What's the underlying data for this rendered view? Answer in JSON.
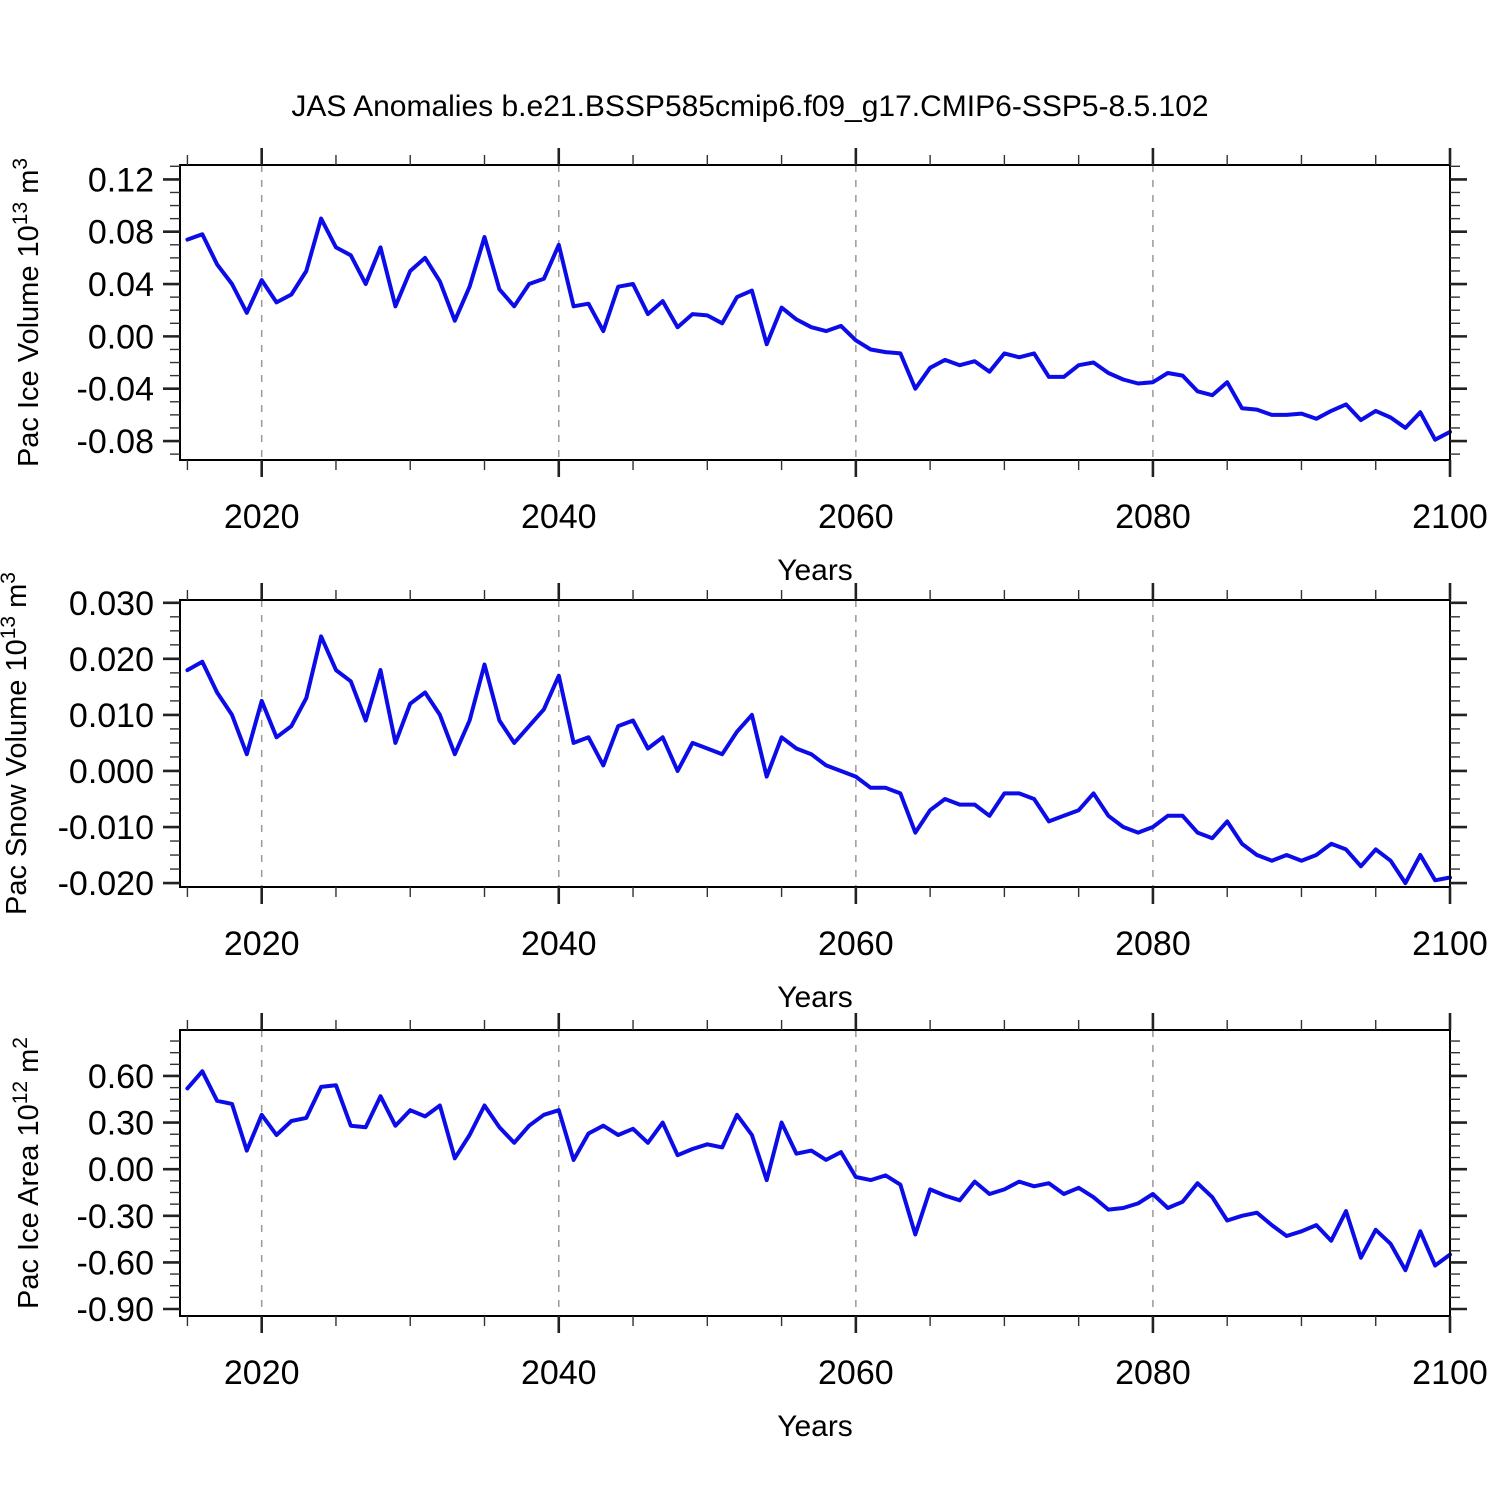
{
  "figure": {
    "title": "JAS Anomalies b.e21.BSSP585cmip6.f09_g17.CMIP6-SSP5-8.5.102",
    "background_color": "#ffffff",
    "line_color": "#0c0ce8",
    "grid_color": "#999999",
    "axis_color": "#000000"
  },
  "x_years": [
    2015,
    2016,
    2017,
    2018,
    2019,
    2020,
    2021,
    2022,
    2023,
    2024,
    2025,
    2026,
    2027,
    2028,
    2029,
    2030,
    2031,
    2032,
    2033,
    2034,
    2035,
    2036,
    2037,
    2038,
    2039,
    2040,
    2041,
    2042,
    2043,
    2044,
    2045,
    2046,
    2047,
    2048,
    2049,
    2050,
    2051,
    2052,
    2053,
    2054,
    2055,
    2056,
    2057,
    2058,
    2059,
    2060,
    2061,
    2062,
    2063,
    2064,
    2065,
    2066,
    2067,
    2068,
    2069,
    2070,
    2071,
    2072,
    2073,
    2074,
    2075,
    2076,
    2077,
    2078,
    2079,
    2080,
    2081,
    2082,
    2083,
    2084,
    2085,
    2086,
    2087,
    2088,
    2089,
    2090,
    2091,
    2092,
    2093,
    2094,
    2095,
    2096,
    2097,
    2098,
    2099,
    2100
  ],
  "chart_data": [
    {
      "type": "line",
      "ylabel": {
        "base": "Pac Ice Volume 10",
        "exponent": "13",
        "unit": " m",
        "unit_exponent": "3",
        "text": "Pac Ice Volume 10^13 m^3"
      },
      "xlabel": "Years",
      "xlim": [
        2014.5,
        2100
      ],
      "ylim": [
        -0.0945,
        0.131
      ],
      "x_ticks_major": [
        2020,
        2040,
        2060,
        2080,
        2100
      ],
      "x_minor_step": 5,
      "y_ticks_major": [
        0.12,
        0.08,
        0.04,
        0.0,
        -0.04,
        -0.08
      ],
      "y_minor_step": 0.01,
      "y_decimals": 2,
      "gridlines_x": [
        2020,
        2040,
        2060,
        2080
      ],
      "grid_on": true,
      "legend": "none",
      "values": [
        0.074,
        0.078,
        0.055,
        0.04,
        0.018,
        0.043,
        0.026,
        0.032,
        0.05,
        0.09,
        0.068,
        0.062,
        0.04,
        0.068,
        0.023,
        0.05,
        0.06,
        0.042,
        0.012,
        0.038,
        0.076,
        0.036,
        0.023,
        0.04,
        0.044,
        0.07,
        0.023,
        0.025,
        0.004,
        0.038,
        0.04,
        0.017,
        0.027,
        0.007,
        0.017,
        0.016,
        0.01,
        0.03,
        0.035,
        -0.006,
        0.022,
        0.013,
        0.007,
        0.004,
        0.008,
        -0.003,
        -0.01,
        -0.012,
        -0.013,
        -0.04,
        -0.024,
        -0.018,
        -0.022,
        -0.019,
        -0.027,
        -0.013,
        -0.016,
        -0.013,
        -0.031,
        -0.031,
        -0.022,
        -0.02,
        -0.028,
        -0.033,
        -0.036,
        -0.035,
        -0.028,
        -0.03,
        -0.042,
        -0.045,
        -0.035,
        -0.055,
        -0.056,
        -0.06,
        -0.06,
        -0.059,
        -0.063,
        -0.057,
        -0.052,
        -0.064,
        -0.057,
        -0.062,
        -0.07,
        -0.058,
        -0.079,
        -0.073
      ]
    },
    {
      "type": "line",
      "ylabel": {
        "base": "Pac Snow Volume 10",
        "exponent": "13",
        "unit": " m",
        "unit_exponent": "3",
        "text": "Pac Snow Volume 10^13 m^3"
      },
      "xlabel": "Years",
      "xlim": [
        2014.5,
        2100
      ],
      "ylim": [
        -0.0207,
        0.0305
      ],
      "x_ticks_major": [
        2020,
        2040,
        2060,
        2080,
        2100
      ],
      "x_minor_step": 5,
      "y_ticks_major": [
        0.03,
        0.02,
        0.01,
        0.0,
        -0.01,
        -0.02
      ],
      "y_minor_step": 0.0025,
      "y_decimals": 3,
      "gridlines_x": [
        2020,
        2040,
        2060,
        2080
      ],
      "grid_on": true,
      "legend": "none",
      "values": [
        0.018,
        0.0195,
        0.014,
        0.01,
        0.003,
        0.0125,
        0.006,
        0.008,
        0.013,
        0.024,
        0.018,
        0.016,
        0.009,
        0.018,
        0.005,
        0.012,
        0.014,
        0.01,
        0.003,
        0.009,
        0.019,
        0.009,
        0.005,
        0.008,
        0.011,
        0.017,
        0.005,
        0.006,
        0.001,
        0.008,
        0.009,
        0.004,
        0.006,
        0.0,
        0.005,
        0.004,
        0.003,
        0.007,
        0.01,
        -0.001,
        0.006,
        0.004,
        0.003,
        0.001,
        0.0,
        -0.001,
        -0.003,
        -0.003,
        -0.004,
        -0.011,
        -0.007,
        -0.005,
        -0.006,
        -0.006,
        -0.008,
        -0.004,
        -0.004,
        -0.005,
        -0.009,
        -0.008,
        -0.007,
        -0.004,
        -0.008,
        -0.01,
        -0.011,
        -0.01,
        -0.008,
        -0.008,
        -0.011,
        -0.012,
        -0.009,
        -0.013,
        -0.015,
        -0.016,
        -0.015,
        -0.016,
        -0.015,
        -0.013,
        -0.014,
        -0.017,
        -0.014,
        -0.016,
        -0.02,
        -0.015,
        -0.0195,
        -0.019
      ]
    },
    {
      "type": "line",
      "ylabel": {
        "base": "Pac Ice Area 10",
        "exponent": "12",
        "unit": " m",
        "unit_exponent": "2",
        "text": "Pac Ice Area 10^12 m^2"
      },
      "xlabel": "Years",
      "xlim": [
        2014.5,
        2100
      ],
      "ylim": [
        -0.945,
        0.896
      ],
      "x_ticks_major": [
        2020,
        2040,
        2060,
        2080,
        2100
      ],
      "x_minor_step": 5,
      "y_ticks_major": [
        0.6,
        0.3,
        0.0,
        -0.3,
        -0.6,
        -0.9
      ],
      "y_minor_step": 0.075,
      "y_decimals": 2,
      "gridlines_x": [
        2020,
        2040,
        2060,
        2080
      ],
      "grid_on": true,
      "legend": "none",
      "values": [
        0.52,
        0.63,
        0.44,
        0.42,
        0.12,
        0.35,
        0.22,
        0.31,
        0.33,
        0.53,
        0.54,
        0.28,
        0.27,
        0.47,
        0.28,
        0.38,
        0.34,
        0.41,
        0.07,
        0.22,
        0.41,
        0.27,
        0.17,
        0.28,
        0.35,
        0.38,
        0.06,
        0.23,
        0.28,
        0.22,
        0.26,
        0.17,
        0.3,
        0.09,
        0.13,
        0.16,
        0.14,
        0.35,
        0.22,
        -0.07,
        0.3,
        0.1,
        0.12,
        0.06,
        0.11,
        -0.05,
        -0.07,
        -0.04,
        -0.1,
        -0.42,
        -0.13,
        -0.17,
        -0.2,
        -0.08,
        -0.16,
        -0.13,
        -0.08,
        -0.11,
        -0.09,
        -0.16,
        -0.12,
        -0.18,
        -0.26,
        -0.25,
        -0.22,
        -0.16,
        -0.25,
        -0.21,
        -0.09,
        -0.18,
        -0.33,
        -0.3,
        -0.28,
        -0.36,
        -0.43,
        -0.4,
        -0.36,
        -0.46,
        -0.27,
        -0.57,
        -0.39,
        -0.48,
        -0.65,
        -0.4,
        -0.62,
        -0.55
      ]
    }
  ]
}
